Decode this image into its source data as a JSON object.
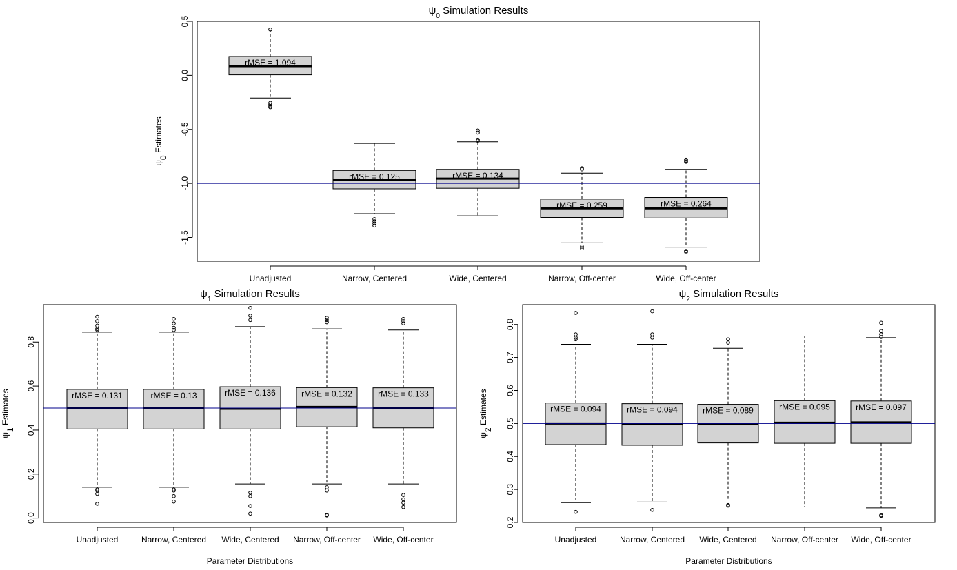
{
  "colors": {
    "box_fill": "#d3d3d3",
    "stroke": "#000000",
    "ref_line": "#00008b",
    "background": "#ffffff"
  },
  "chart_data": [
    {
      "type": "boxplot",
      "title": {
        "pre": "ψ",
        "sub": "0",
        "post": " Simulation Results"
      },
      "ylabel": {
        "pre": "ψ",
        "sub": "0",
        "post": " Estimates"
      },
      "xlabel": "",
      "ylim": [
        -1.72,
        0.5
      ],
      "yticks": [
        0.5,
        0.0,
        -0.5,
        -1.0,
        -1.5
      ],
      "ytick_labels": [
        "0.5",
        "0.0",
        "-0.5",
        "-1.0",
        "-1.5"
      ],
      "reference_line": -1.0,
      "categories": [
        "Unadjusted",
        "Narrow, Centered",
        "Wide, Centered",
        "Narrow, Off-center",
        "Wide, Off-center"
      ],
      "boxes": [
        {
          "whisker_low": -0.21,
          "q1": 0.005,
          "median": 0.085,
          "q3": 0.175,
          "whisker_high": 0.42,
          "outliers": [
            0.425,
            -0.255,
            -0.27,
            -0.285,
            -0.295
          ],
          "label": "rMSE = 1.094"
        },
        {
          "whisker_low": -1.28,
          "q1": -1.05,
          "median": -0.965,
          "q3": -0.88,
          "whisker_high": -0.63,
          "outliers": [
            -1.33,
            -1.35,
            -1.37,
            -1.39
          ],
          "label": "rMSE = 0.125"
        },
        {
          "whisker_low": -1.3,
          "q1": -1.045,
          "median": -0.955,
          "q3": -0.87,
          "whisker_high": -0.615,
          "outliers": [
            -0.51,
            -0.53,
            -0.595,
            -0.605
          ],
          "label": "rMSE = 0.134"
        },
        {
          "whisker_low": -1.55,
          "q1": -1.315,
          "median": -1.23,
          "q3": -1.145,
          "whisker_high": -0.905,
          "outliers": [
            -0.86,
            -0.87,
            -1.585,
            -1.6
          ],
          "label": "rMSE = 0.259"
        },
        {
          "whisker_low": -1.59,
          "q1": -1.32,
          "median": -1.23,
          "q3": -1.13,
          "whisker_high": -0.87,
          "outliers": [
            -0.78,
            -0.79,
            -0.8,
            -1.625,
            -1.635
          ],
          "label": "rMSE = 0.264"
        }
      ]
    },
    {
      "type": "boxplot",
      "title": {
        "pre": "ψ",
        "sub": "1",
        "post": " Simulation Results"
      },
      "ylabel": {
        "pre": "ψ",
        "sub": "1",
        "post": " Estimates"
      },
      "xlabel": "Parameter Distributions",
      "ylim": [
        -0.02,
        0.97
      ],
      "yticks": [
        0.0,
        0.2,
        0.4,
        0.6,
        0.8
      ],
      "ytick_labels": [
        "0.0",
        "0.2",
        "0.4",
        "0.6",
        "0.8"
      ],
      "reference_line": 0.5,
      "categories": [
        "Unadjusted",
        "Narrow, Centered",
        "Wide, Centered",
        "Narrow, Off-center",
        "Wide, Off-center"
      ],
      "boxes": [
        {
          "whisker_low": 0.14,
          "q1": 0.405,
          "median": 0.5,
          "q3": 0.585,
          "whisker_high": 0.845,
          "outliers": [
            0.915,
            0.895,
            0.875,
            0.86,
            0.855,
            0.13,
            0.125,
            0.11,
            0.065
          ],
          "label": "rMSE = 0.131"
        },
        {
          "whisker_low": 0.14,
          "q1": 0.405,
          "median": 0.5,
          "q3": 0.585,
          "whisker_high": 0.845,
          "outliers": [
            0.905,
            0.885,
            0.865,
            0.855,
            0.13,
            0.125,
            0.1,
            0.075
          ],
          "label": "rMSE = 0.13"
        },
        {
          "whisker_low": 0.155,
          "q1": 0.405,
          "median": 0.497,
          "q3": 0.597,
          "whisker_high": 0.87,
          "outliers": [
            0.955,
            0.92,
            0.9,
            0.115,
            0.1,
            0.055,
            0.02
          ],
          "label": "rMSE = 0.136"
        },
        {
          "whisker_low": 0.155,
          "q1": 0.415,
          "median": 0.505,
          "q3": 0.593,
          "whisker_high": 0.86,
          "outliers": [
            0.91,
            0.9,
            0.89,
            0.14,
            0.125,
            0.015,
            0.012
          ],
          "label": "rMSE = 0.132"
        },
        {
          "whisker_low": 0.155,
          "q1": 0.41,
          "median": 0.5,
          "q3": 0.592,
          "whisker_high": 0.855,
          "outliers": [
            0.905,
            0.895,
            0.885,
            0.105,
            0.085,
            0.07,
            0.05
          ],
          "label": "rMSE = 0.133"
        }
      ]
    },
    {
      "type": "boxplot",
      "title": {
        "pre": "ψ",
        "sub": "2",
        "post": " Simulation Results"
      },
      "ylabel": {
        "pre": "ψ",
        "sub": "2",
        "post": " Estimates"
      },
      "xlabel": "Parameter Distributions",
      "ylim": [
        0.2,
        0.86
      ],
      "yticks": [
        0.2,
        0.3,
        0.4,
        0.5,
        0.6,
        0.7,
        0.8
      ],
      "ytick_labels": [
        "0.2",
        "0.3",
        "0.4",
        "0.5",
        "0.6",
        "0.7",
        "0.8"
      ],
      "reference_line": 0.5,
      "categories": [
        "Unadjusted",
        "Narrow, Centered",
        "Wide, Centered",
        "Narrow, Off-center",
        "Wide, Off-center"
      ],
      "boxes": [
        {
          "whisker_low": 0.26,
          "q1": 0.436,
          "median": 0.5,
          "q3": 0.562,
          "whisker_high": 0.74,
          "outliers": [
            0.835,
            0.77,
            0.76,
            0.755,
            0.232
          ],
          "label": "rMSE = 0.094"
        },
        {
          "whisker_low": 0.262,
          "q1": 0.434,
          "median": 0.498,
          "q3": 0.56,
          "whisker_high": 0.74,
          "outliers": [
            0.84,
            0.77,
            0.76,
            0.238
          ],
          "label": "rMSE = 0.094"
        },
        {
          "whisker_low": 0.268,
          "q1": 0.441,
          "median": 0.499,
          "q3": 0.558,
          "whisker_high": 0.728,
          "outliers": [
            0.755,
            0.745,
            0.253,
            0.251
          ],
          "label": "rMSE = 0.089"
        },
        {
          "whisker_low": 0.247,
          "q1": 0.44,
          "median": 0.502,
          "q3": 0.569,
          "whisker_high": 0.765,
          "outliers": [],
          "label": "rMSE = 0.095"
        },
        {
          "whisker_low": 0.244,
          "q1": 0.44,
          "median": 0.503,
          "q3": 0.568,
          "whisker_high": 0.76,
          "outliers": [
            0.805,
            0.78,
            0.77,
            0.762,
            0.222,
            0.22
          ],
          "label": "rMSE = 0.097"
        }
      ]
    }
  ]
}
